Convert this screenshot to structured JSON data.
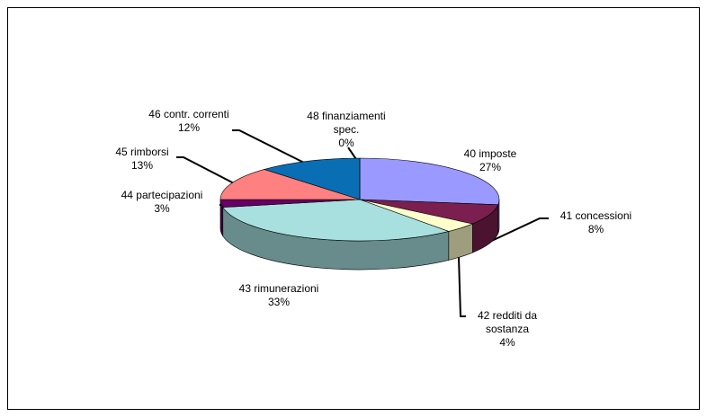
{
  "chart_data": {
    "type": "pie3d",
    "categories": [
      "40 imposte",
      "41 concessioni",
      "42 redditi da sostanza",
      "43 rimunerazioni",
      "44 partecipazioni",
      "45 rimborsi",
      "46 contr. correnti",
      "48 finanziamenti spec."
    ],
    "values": [
      27,
      8,
      4,
      33,
      3,
      13,
      12,
      0
    ],
    "value_labels": [
      "27%",
      "8%",
      "4%",
      "33%",
      "3%",
      "13%",
      "12%",
      "0%"
    ],
    "colors": [
      "#9999ff",
      "#7a1f4f",
      "#ffffcc",
      "#a8e0e0",
      "#660066",
      "#ff8080",
      "#0a6eb4",
      "#ffc000"
    ]
  }
}
